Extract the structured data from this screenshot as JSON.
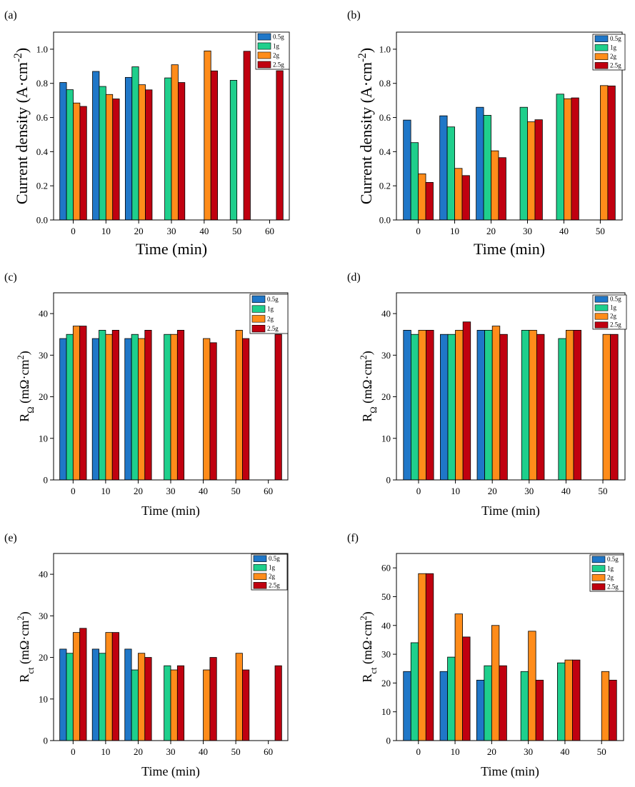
{
  "colors": {
    "0.5g": "#1f77c8",
    "1g": "#1fcf8c",
    "2g": "#ff8c1a",
    "2.5g": "#c00010",
    "axis": "#000000"
  },
  "chart_data": [
    {
      "panel": "(a)",
      "type": "bar",
      "categories": [
        "0",
        "10",
        "20",
        "30",
        "40",
        "50",
        "60"
      ],
      "xlabel": "Time (min)",
      "ylabel": "Current density (A·cm⁻²)",
      "ylim": [
        0,
        1.1
      ],
      "yticks": [
        "0.0",
        "0.2",
        "0.4",
        "0.6",
        "0.8",
        "1.0"
      ],
      "legend_position": "top-right",
      "series": [
        {
          "name": "0.5g",
          "values": [
            0.805,
            0.87,
            0.835,
            null,
            null,
            null,
            null
          ]
        },
        {
          "name": "1g",
          "values": [
            0.763,
            0.782,
            0.897,
            0.832,
            null,
            0.818,
            null
          ]
        },
        {
          "name": "2g",
          "values": [
            0.685,
            0.735,
            0.792,
            0.909,
            0.99,
            null,
            null
          ]
        },
        {
          "name": "2.5g",
          "values": [
            0.665,
            0.709,
            0.762,
            0.805,
            0.873,
            0.988,
            0.874
          ]
        }
      ]
    },
    {
      "panel": "(b)",
      "type": "bar",
      "categories": [
        "0",
        "10",
        "20",
        "30",
        "40",
        "50"
      ],
      "xlabel": "Time (min)",
      "ylabel": "Current density (A·cm⁻²)",
      "ylim": [
        0,
        1.1
      ],
      "yticks": [
        "0.0",
        "0.2",
        "0.4",
        "0.6",
        "0.8",
        "1.0"
      ],
      "legend_position": "top-right",
      "series": [
        {
          "name": "0.5g",
          "values": [
            0.585,
            0.61,
            0.66,
            null,
            null,
            null
          ]
        },
        {
          "name": "1g",
          "values": [
            0.453,
            0.545,
            0.613,
            0.66,
            0.737,
            null
          ]
        },
        {
          "name": "2g",
          "values": [
            0.27,
            0.302,
            0.405,
            0.575,
            0.71,
            0.787
          ]
        },
        {
          "name": "2.5g",
          "values": [
            0.22,
            0.26,
            0.365,
            0.587,
            0.715,
            0.785
          ]
        }
      ]
    },
    {
      "panel": "(c)",
      "type": "bar",
      "categories": [
        "0",
        "10",
        "20",
        "30",
        "40",
        "50",
        "60"
      ],
      "xlabel": "Time (min)",
      "ylabel": "RΩ (mΩ·cm²)",
      "ylim": [
        0,
        45
      ],
      "yticks": [
        "0",
        "10",
        "20",
        "30",
        "40"
      ],
      "legend_position": "top-right",
      "series": [
        {
          "name": "0.5g",
          "values": [
            34,
            34,
            34,
            null,
            null,
            null,
            null
          ]
        },
        {
          "name": "1g",
          "values": [
            35,
            36,
            35,
            35,
            null,
            null,
            null
          ]
        },
        {
          "name": "2g",
          "values": [
            37,
            35,
            34,
            35,
            34,
            36,
            null
          ]
        },
        {
          "name": "2.5g",
          "values": [
            37,
            36,
            36,
            36,
            33,
            34,
            35
          ]
        }
      ]
    },
    {
      "panel": "(d)",
      "type": "bar",
      "categories": [
        "0",
        "10",
        "20",
        "30",
        "40",
        "50"
      ],
      "xlabel": "Time (min)",
      "ylabel": "RΩ (mΩ·cm²)",
      "ylim": [
        0,
        45
      ],
      "yticks": [
        "0",
        "10",
        "20",
        "30",
        "40"
      ],
      "legend_position": "top-right",
      "series": [
        {
          "name": "0.5g",
          "values": [
            36,
            35,
            36,
            null,
            null,
            null
          ]
        },
        {
          "name": "1g",
          "values": [
            35,
            35,
            36,
            36,
            34,
            null
          ]
        },
        {
          "name": "2g",
          "values": [
            36,
            36,
            37,
            36,
            36,
            35
          ]
        },
        {
          "name": "2.5g",
          "values": [
            36,
            38,
            35,
            35,
            36,
            35
          ]
        }
      ]
    },
    {
      "panel": "(e)",
      "type": "bar",
      "categories": [
        "0",
        "10",
        "20",
        "30",
        "40",
        "50",
        "60"
      ],
      "xlabel": "Time (min)",
      "ylabel": "Rct (mΩ·cm²)",
      "ylim": [
        0,
        45
      ],
      "yticks": [
        "0",
        "10",
        "20",
        "30",
        "40"
      ],
      "legend_position": "top-right",
      "series": [
        {
          "name": "0.5g",
          "values": [
            22,
            22,
            22,
            null,
            null,
            null,
            null
          ]
        },
        {
          "name": "1g",
          "values": [
            21,
            21,
            17,
            18,
            null,
            null,
            null
          ]
        },
        {
          "name": "2g",
          "values": [
            26,
            26,
            21,
            17,
            17,
            21,
            null
          ]
        },
        {
          "name": "2.5g",
          "values": [
            27,
            26,
            20,
            18,
            20,
            17,
            18
          ]
        }
      ]
    },
    {
      "panel": "(f)",
      "type": "bar",
      "categories": [
        "0",
        "10",
        "20",
        "30",
        "40",
        "50"
      ],
      "xlabel": "Time (min)",
      "ylabel": "Rct (mΩ·cm²)",
      "ylim": [
        0,
        65
      ],
      "yticks": [
        "0",
        "10",
        "20",
        "30",
        "40",
        "50",
        "60"
      ],
      "legend_position": "top-right",
      "series": [
        {
          "name": "0.5g",
          "values": [
            24,
            24,
            21,
            null,
            null,
            null
          ]
        },
        {
          "name": "1g",
          "values": [
            34,
            29,
            26,
            24,
            27,
            null
          ]
        },
        {
          "name": "2g",
          "values": [
            58,
            44,
            40,
            38,
            28,
            24
          ]
        },
        {
          "name": "2.5g",
          "values": [
            58,
            36,
            26,
            21,
            28,
            21
          ]
        }
      ]
    }
  ]
}
